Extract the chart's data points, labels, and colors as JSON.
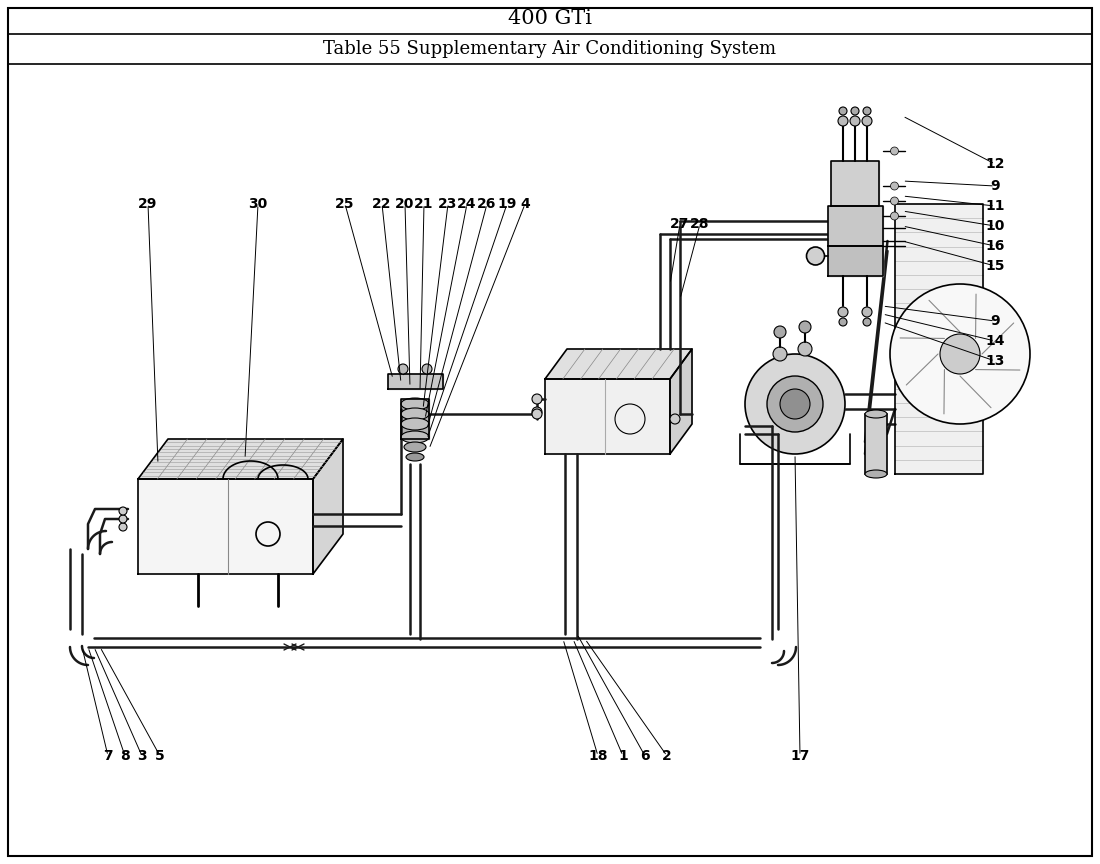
{
  "title1": "400 GTi",
  "title2": "Table 55 Supplementary Air Conditioning System",
  "bg_color": "#ffffff",
  "line_color": "#000000",
  "title1_fontsize": 15,
  "title2_fontsize": 13,
  "fig_width": 11.0,
  "fig_height": 8.64,
  "lw_pipe": 1.8,
  "lw_component": 1.2,
  "lw_border": 1.5,
  "lw_ann": 0.7
}
